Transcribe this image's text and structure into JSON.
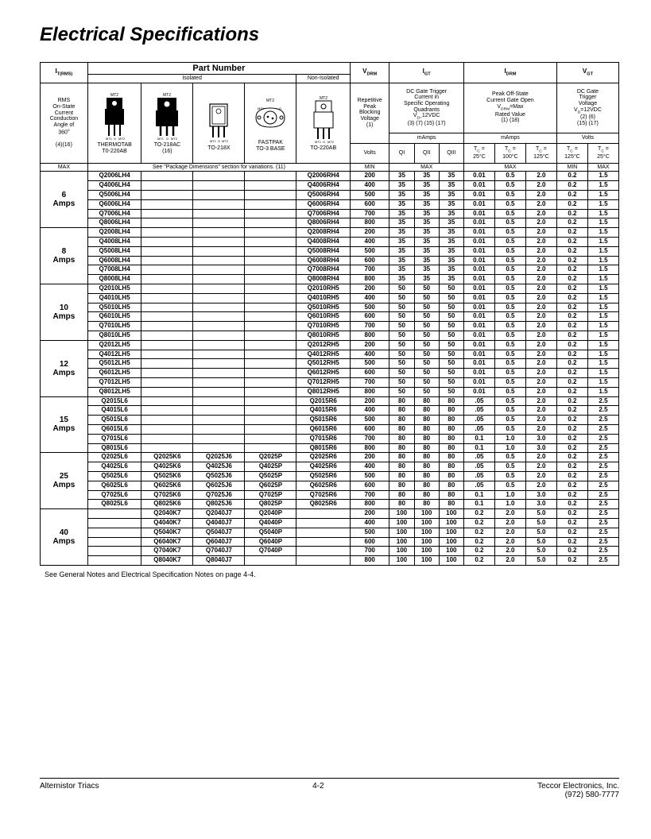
{
  "title": "Electrical Specifications",
  "footnote": "See General Notes and Electrical Specification Notes on page 4-4.",
  "footerL": "Alternistor Triacs",
  "footerC": "4-2",
  "footerR1": "Teccor Electronics, Inc.",
  "footerR2": "(972) 580-7777",
  "hdr": {
    "itrms": "I<sub>T(RMS)</sub>",
    "pn": "Part Number",
    "iso": "Isolated",
    "noniso": "Non-Isolated",
    "vdrm": "V<sub>DRM</sub>",
    "igt": "I<sub>GT</sub>",
    "idrm": "I<sub>DRM</sub>",
    "vgt": "V<sub>GT</sub>",
    "rmsDesc": "RMS<br>On-State<br>Current<br>Conduction<br>Angle of<br>360<sup>o</sup><br><br>(4)(16)",
    "pk1": "THERMOTAB<br>T0-220AB",
    "pk2": "TO-218AC<br>(16)",
    "pk3": "TO-218X",
    "pk4": "FASTPAK<br>TO-3 BASE",
    "pk5": "TO-220AB",
    "vdrmDesc": "Repetitive<br>Peak<br>Blocking<br>Voltage<br>(1)",
    "igtDesc": "DC Gate Trigger<br>Current in<br>Specific Operating<br>Quadrants<br>V<sub>D=</sub>12VDC<br>(3) (7) (15) (17)",
    "idrmDesc": "Peak Off-State<br>Current Gate Open<br>V<sub>DRM</sub>=Max<br>Rated Value<br>(1) (18)",
    "vgtDesc": "DC Gate<br>Trigger<br>Voltage<br>V<sub>D</sub>=12VDC<br>(2) (6)<br>(15) (17)",
    "mamps": "mAmps",
    "volts": "Volts",
    "max": "MAX",
    "min": "MIN",
    "variationsNote": "See \"Package Dimensions\" section for variations. (11)",
    "q1": "QI",
    "q2": "QII",
    "q3": "QIII",
    "tc25": "T<sub>C</sub> =<br>25°C",
    "tc100": "T<sub>C</sub> =<br>100°C",
    "tc125": "T<sub>C</sub> =<br>125°C"
  },
  "groups": [
    {
      "label": "6<br>Amps",
      "rows": [
        [
          "Q2006LH4",
          "",
          "",
          "",
          "Q2006RH4",
          "200",
          "35",
          "35",
          "35",
          "0.01",
          "0.5",
          "2.0",
          "0.2",
          "1.5"
        ],
        [
          "Q4006LH4",
          "",
          "",
          "",
          "Q4006RH4",
          "400",
          "35",
          "35",
          "35",
          "0.01",
          "0.5",
          "2.0",
          "0.2",
          "1.5"
        ],
        [
          "Q5006LH4",
          "",
          "",
          "",
          "Q5006RH4",
          "500",
          "35",
          "35",
          "35",
          "0.01",
          "0.5",
          "2.0",
          "0.2",
          "1.5"
        ],
        [
          "Q6006LH4",
          "",
          "",
          "",
          "Q6006RH4",
          "600",
          "35",
          "35",
          "35",
          "0.01",
          "0.5",
          "2.0",
          "0.2",
          "1.5"
        ],
        [
          "Q7006LH4",
          "",
          "",
          "",
          "Q7006RH4",
          "700",
          "35",
          "35",
          "35",
          "0.01",
          "0.5",
          "2.0",
          "0.2",
          "1.5"
        ],
        [
          "Q8006LH4",
          "",
          "",
          "",
          "Q8006RH4",
          "800",
          "35",
          "35",
          "35",
          "0.01",
          "0.5",
          "2.0",
          "0.2",
          "1.5"
        ]
      ]
    },
    {
      "label": "8<br>Amps",
      "rows": [
        [
          "Q2008LH4",
          "",
          "",
          "",
          "Q2008RH4",
          "200",
          "35",
          "35",
          "35",
          "0.01",
          "0.5",
          "2.0",
          "0.2",
          "1.5"
        ],
        [
          "Q4008LH4",
          "",
          "",
          "",
          "Q4008RH4",
          "400",
          "35",
          "35",
          "35",
          "0.01",
          "0.5",
          "2.0",
          "0.2",
          "1.5"
        ],
        [
          "Q5008LH4",
          "",
          "",
          "",
          "Q5008RH4",
          "500",
          "35",
          "35",
          "35",
          "0.01",
          "0.5",
          "2.0",
          "0.2",
          "1.5"
        ],
        [
          "Q6008LH4",
          "",
          "",
          "",
          "Q6008RH4",
          "600",
          "35",
          "35",
          "35",
          "0.01",
          "0.5",
          "2.0",
          "0.2",
          "1.5"
        ],
        [
          "Q7008LH4",
          "",
          "",
          "",
          "Q7008RH4",
          "700",
          "35",
          "35",
          "35",
          "0.01",
          "0.5",
          "2.0",
          "0.2",
          "1.5"
        ],
        [
          "Q8008LH4",
          "",
          "",
          "",
          "Q8008RH4",
          "800",
          "35",
          "35",
          "35",
          "0.01",
          "0.5",
          "2.0",
          "0.2",
          "1.5"
        ]
      ]
    },
    {
      "label": "10<br>Amps",
      "rows": [
        [
          "Q2010LH5",
          "",
          "",
          "",
          "Q2010RH5",
          "200",
          "50",
          "50",
          "50",
          "0.01",
          "0.5",
          "2.0",
          "0.2",
          "1.5"
        ],
        [
          "Q4010LH5",
          "",
          "",
          "",
          "Q4010RH5",
          "400",
          "50",
          "50",
          "50",
          "0.01",
          "0.5",
          "2.0",
          "0.2",
          "1.5"
        ],
        [
          "Q5010LH5",
          "",
          "",
          "",
          "Q5010RH5",
          "500",
          "50",
          "50",
          "50",
          "0.01",
          "0.5",
          "2.0",
          "0.2",
          "1.5"
        ],
        [
          "Q6010LH5",
          "",
          "",
          "",
          "Q6010RH5",
          "600",
          "50",
          "50",
          "50",
          "0.01",
          "0.5",
          "2.0",
          "0.2",
          "1.5"
        ],
        [
          "Q7010LH5",
          "",
          "",
          "",
          "Q7010RH5",
          "700",
          "50",
          "50",
          "50",
          "0.01",
          "0.5",
          "2.0",
          "0.2",
          "1.5"
        ],
        [
          "Q8010LH5",
          "",
          "",
          "",
          "Q8010RH5",
          "800",
          "50",
          "50",
          "50",
          "0.01",
          "0.5",
          "2.0",
          "0.2",
          "1.5"
        ]
      ]
    },
    {
      "label": "12<br>Amps",
      "rows": [
        [
          "Q2012LH5",
          "",
          "",
          "",
          "Q2012RH5",
          "200",
          "50",
          "50",
          "50",
          "0.01",
          "0.5",
          "2.0",
          "0.2",
          "1.5"
        ],
        [
          "Q4012LH5",
          "",
          "",
          "",
          "Q4012RH5",
          "400",
          "50",
          "50",
          "50",
          "0.01",
          "0.5",
          "2.0",
          "0.2",
          "1.5"
        ],
        [
          "Q5012LH5",
          "",
          "",
          "",
          "Q5012RH5",
          "500",
          "50",
          "50",
          "50",
          "0.01",
          "0.5",
          "2.0",
          "0.2",
          "1.5"
        ],
        [
          "Q6012LH5",
          "",
          "",
          "",
          "Q6012RH5",
          "600",
          "50",
          "50",
          "50",
          "0.01",
          "0.5",
          "2.0",
          "0.2",
          "1.5"
        ],
        [
          "Q7012LH5",
          "",
          "",
          "",
          "Q7012RH5",
          "700",
          "50",
          "50",
          "50",
          "0.01",
          "0.5",
          "2.0",
          "0.2",
          "1.5"
        ],
        [
          "Q8012LH5",
          "",
          "",
          "",
          "Q8012RH5",
          "800",
          "50",
          "50",
          "50",
          "0.01",
          "0.5",
          "2.0",
          "0.2",
          "1.5"
        ]
      ]
    },
    {
      "label": "15<br>Amps",
      "rows": [
        [
          "Q2015L6",
          "",
          "",
          "",
          "Q2015R6",
          "200",
          "80",
          "80",
          "80",
          ".05",
          "0.5",
          "2.0",
          "0.2",
          "2.5"
        ],
        [
          "Q4015L6",
          "",
          "",
          "",
          "Q4015R6",
          "400",
          "80",
          "80",
          "80",
          ".05",
          "0.5",
          "2.0",
          "0.2",
          "2.5"
        ],
        [
          "Q5015L6",
          "",
          "",
          "",
          "Q5015R6",
          "500",
          "80",
          "80",
          "80",
          ".05",
          "0.5",
          "2.0",
          "0.2",
          "2.5"
        ],
        [
          "Q6015L6",
          "",
          "",
          "",
          "Q6015R6",
          "600",
          "80",
          "80",
          "80",
          ".05",
          "0.5",
          "2.0",
          "0.2",
          "2.5"
        ],
        [
          "Q7015L6",
          "",
          "",
          "",
          "Q7015R6",
          "700",
          "80",
          "80",
          "80",
          "0.1",
          "1.0",
          "3.0",
          "0.2",
          "2.5"
        ],
        [
          "Q8015L6",
          "",
          "",
          "",
          "Q8015R6",
          "800",
          "80",
          "80",
          "80",
          "0.1",
          "1.0",
          "3.0",
          "0.2",
          "2.5"
        ]
      ]
    },
    {
      "label": "25<br>Amps",
      "rows": [
        [
          "Q2025L6",
          "Q2025K6",
          "Q2025J6",
          "Q2025P",
          "Q2025R6",
          "200",
          "80",
          "80",
          "80",
          ".05",
          "0.5",
          "2.0",
          "0.2",
          "2.5"
        ],
        [
          "Q4025L6",
          "Q4025K6",
          "Q4025J6",
          "Q4025P",
          "Q4025R6",
          "400",
          "80",
          "80",
          "80",
          ".05",
          "0.5",
          "2.0",
          "0.2",
          "2.5"
        ],
        [
          "Q5025L6",
          "Q5025K6",
          "Q5025J6",
          "Q5025P",
          "Q5025R6",
          "500",
          "80",
          "80",
          "80",
          ".05",
          "0.5",
          "2.0",
          "0.2",
          "2.5"
        ],
        [
          "Q6025L6",
          "Q6025K6",
          "Q6025J6",
          "Q6025P",
          "Q6025R6",
          "600",
          "80",
          "80",
          "80",
          ".05",
          "0.5",
          "2.0",
          "0.2",
          "2.5"
        ],
        [
          "Q7025L6",
          "Q7025K6",
          "Q7025J6",
          "Q7025P",
          "Q7025R6",
          "700",
          "80",
          "80",
          "80",
          "0.1",
          "1.0",
          "3.0",
          "0.2",
          "2.5"
        ],
        [
          "Q8025L6",
          "Q8025K6",
          "Q8025J6",
          "Q8025P",
          "Q8025R6",
          "800",
          "80",
          "80",
          "80",
          "0.1",
          "1.0",
          "3.0",
          "0.2",
          "2.5"
        ]
      ]
    },
    {
      "label": "40<br>Amps",
      "rows": [
        [
          "",
          "Q2040K7",
          "Q2040J7",
          "Q2040P",
          "",
          "200",
          "100",
          "100",
          "100",
          "0.2",
          "2.0",
          "5.0",
          "0.2",
          "2.5"
        ],
        [
          "",
          "Q4040K7",
          "Q4040J7",
          "Q4040P",
          "",
          "400",
          "100",
          "100",
          "100",
          "0.2",
          "2.0",
          "5.0",
          "0.2",
          "2.5"
        ],
        [
          "",
          "Q5040K7",
          "Q5040J7",
          "Q5040P",
          "",
          "500",
          "100",
          "100",
          "100",
          "0.2",
          "2.0",
          "5.0",
          "0.2",
          "2.5"
        ],
        [
          "",
          "Q6040K7",
          "Q6040J7",
          "Q6040P",
          "",
          "600",
          "100",
          "100",
          "100",
          "0.2",
          "2.0",
          "5.0",
          "0.2",
          "2.5"
        ],
        [
          "",
          "Q7040K7",
          "Q7040J7",
          "Q7040P",
          "",
          "700",
          "100",
          "100",
          "100",
          "0.2",
          "2.0",
          "5.0",
          "0.2",
          "2.5"
        ],
        [
          "",
          "Q8040K7",
          "Q8040J7",
          "",
          "",
          "800",
          "100",
          "100",
          "100",
          "0.2",
          "2.0",
          "5.0",
          "0.2",
          "2.5"
        ]
      ]
    }
  ]
}
